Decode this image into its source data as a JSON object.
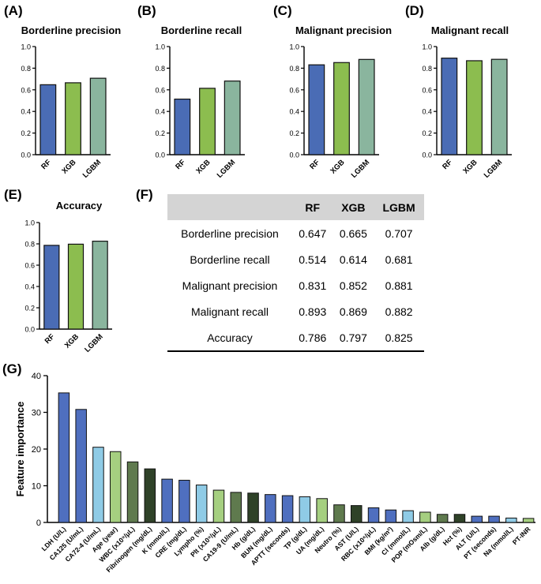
{
  "panels": {
    "a": {
      "letter": "(A)",
      "title": "Borderline precision"
    },
    "b": {
      "letter": "(B)",
      "title": "Borderline recall"
    },
    "c": {
      "letter": "(C)",
      "title": "Malignant precision"
    },
    "d": {
      "letter": "(D)",
      "title": "Malignant recall"
    },
    "e": {
      "letter": "(E)",
      "title": "Accuracy"
    },
    "f": {
      "letter": "(F)"
    },
    "g": {
      "letter": "(G)"
    }
  },
  "table": {
    "columns": [
      "",
      "RF",
      "XGB",
      "LGBM"
    ],
    "rows": [
      {
        "metric": "Borderline precision",
        "rf": "0.647",
        "xgb": "0.665",
        "lgbm": "0.707"
      },
      {
        "metric": "Borderline recall",
        "rf": "0.514",
        "xgb": "0.614",
        "lgbm": "0.681"
      },
      {
        "metric": "Malignant precision",
        "rf": "0.831",
        "xgb": "0.852",
        "lgbm": "0.881"
      },
      {
        "metric": "Malignant recall",
        "rf": "0.893",
        "xgb": "0.869",
        "lgbm": "0.882"
      },
      {
        "metric": "Accuracy",
        "rf": "0.786",
        "xgb": "0.797",
        "lgbm": "0.825"
      }
    ]
  },
  "colors": {
    "rf": "#4a6cb5",
    "xgb": "#8cbd4f",
    "lgbm": "#8ab59e",
    "blue": "#4f6fbf",
    "light_blue": "#8fcbe6",
    "light_green": "#a5cf80",
    "dark_olive": "#5f7a4e",
    "dark_green": "#2f4228"
  },
  "chart_data": [
    {
      "id": "a",
      "type": "bar",
      "title": "Borderline precision",
      "categories": [
        "RF",
        "XGB",
        "LGBM"
      ],
      "values": [
        0.647,
        0.665,
        0.707
      ],
      "ylim": [
        0,
        1.0
      ],
      "yticks": [
        "0.0",
        "0.2",
        "0.4",
        "0.6",
        "0.8",
        "1.0"
      ]
    },
    {
      "id": "b",
      "type": "bar",
      "title": "Borderline recall",
      "categories": [
        "RF",
        "XGB",
        "LGBM"
      ],
      "values": [
        0.514,
        0.614,
        0.681
      ],
      "ylim": [
        0,
        1.0
      ],
      "yticks": [
        "0.0",
        "0.2",
        "0.4",
        "0.6",
        "0.8",
        "1.0"
      ]
    },
    {
      "id": "c",
      "type": "bar",
      "title": "Malignant precision",
      "categories": [
        "RF",
        "XGB",
        "LGBM"
      ],
      "values": [
        0.831,
        0.852,
        0.881
      ],
      "ylim": [
        0,
        1.0
      ],
      "yticks": [
        "0.0",
        "0.2",
        "0.4",
        "0.6",
        "0.8",
        "1.0"
      ]
    },
    {
      "id": "d",
      "type": "bar",
      "title": "Malignant recall",
      "categories": [
        "RF",
        "XGB",
        "LGBM"
      ],
      "values": [
        0.893,
        0.869,
        0.882
      ],
      "ylim": [
        0,
        1.0
      ],
      "yticks": [
        "0.0",
        "0.2",
        "0.4",
        "0.6",
        "0.8",
        "1.0"
      ]
    },
    {
      "id": "e",
      "type": "bar",
      "title": "Accuracy",
      "categories": [
        "RF",
        "XGB",
        "LGBM"
      ],
      "values": [
        0.786,
        0.797,
        0.825
      ],
      "ylim": [
        0,
        1.0
      ],
      "yticks": [
        "0.0",
        "0.2",
        "0.4",
        "0.6",
        "0.8",
        "1.0"
      ]
    },
    {
      "id": "g",
      "type": "bar",
      "ylabel": "Feature importance",
      "ylim": [
        0,
        40
      ],
      "yticks": [
        "0",
        "10",
        "20",
        "30",
        "40"
      ],
      "categories": [
        "LDH (U/L)",
        "CA125 (U/mL)",
        "CA72-4 (U/mL)",
        "Age (year)",
        "WBC (x10⁹/μL)",
        "Fibrinogen (mg/dL)",
        "K (mmol/L)",
        "CRE (mg/dL)",
        "Lympho (%)",
        "Plt (x10⁹/μL)",
        "CA19-9 (U/mL)",
        "Hb (g/dL)",
        "BUN (mg/dL)",
        "APTT (seconds)",
        "TP (g/dL)",
        "UA (mg/dL)",
        "Neutro (%)",
        "AST (U/L)",
        "RBC (x10⁶/μL)",
        "BMI (kg/m²)",
        "Cl (mmol/L)",
        "POP (mOsm/L)",
        "Alb (g/dL)",
        "Hct (%)",
        "ALT (U/L)",
        "PT (seconds)",
        "Na (mmol/L)",
        "PT-INR"
      ],
      "values": [
        35.3,
        30.8,
        20.5,
        19.3,
        16.5,
        14.6,
        11.8,
        11.5,
        10.2,
        8.8,
        8.2,
        8.0,
        7.6,
        7.3,
        7.0,
        6.5,
        4.8,
        4.6,
        4.0,
        3.4,
        3.2,
        2.8,
        2.2,
        2.2,
        1.7,
        1.7,
        1.2,
        1.1
      ],
      "colors": [
        "blue",
        "blue",
        "light_blue",
        "light_green",
        "dark_olive",
        "dark_green",
        "blue",
        "blue",
        "light_blue",
        "light_green",
        "dark_olive",
        "dark_green",
        "blue",
        "blue",
        "light_blue",
        "light_green",
        "dark_olive",
        "dark_green",
        "blue",
        "blue",
        "light_blue",
        "light_green",
        "dark_olive",
        "dark_green",
        "blue",
        "blue",
        "light_blue",
        "light_green"
      ]
    }
  ]
}
